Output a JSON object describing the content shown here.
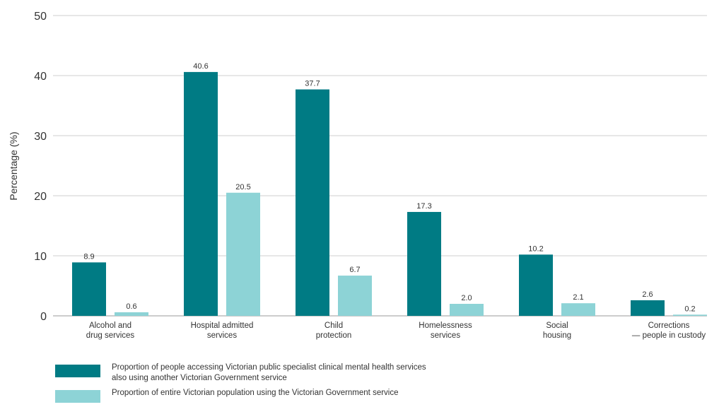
{
  "chart_data": {
    "type": "bar",
    "ylabel": "Percentage (%)",
    "ylim": [
      0,
      50
    ],
    "yticks": [
      0,
      10,
      20,
      30,
      40,
      50
    ],
    "grid": true,
    "categories": [
      [
        "Alcohol and",
        "drug services"
      ],
      [
        "Hospital admitted",
        "services"
      ],
      [
        "Child",
        "protection"
      ],
      [
        "Homelessness",
        "services"
      ],
      [
        "Social",
        "housing"
      ],
      [
        "Corrections",
        "— people in custody"
      ]
    ],
    "series": [
      {
        "name": "Proportion of people accessing Victorian public specialist clinical mental health services also using another Victorian Government service",
        "color": "#007b84",
        "values": [
          8.9,
          40.6,
          37.7,
          17.3,
          10.2,
          2.6
        ],
        "labels": [
          "8.9",
          "40.6",
          "37.7",
          "17.3",
          "10.2",
          "2.6"
        ]
      },
      {
        "name": "Proportion of entire Victorian population using the Victorian Government service",
        "color": "#8dd3d6",
        "values": [
          0.6,
          20.5,
          6.7,
          2.0,
          2.1,
          0.2
        ],
        "labels": [
          "0.6",
          "20.5",
          "6.7",
          "2.0",
          "2.1",
          "0.2"
        ]
      }
    ],
    "legend": {
      "placement": "bottom",
      "lines": [
        [
          "Proportion of people accessing Victorian public specialist clinical mental health services",
          "also using another Victorian Government service"
        ],
        [
          "Proportion of entire Victorian population using the Victorian Government service"
        ]
      ]
    }
  }
}
